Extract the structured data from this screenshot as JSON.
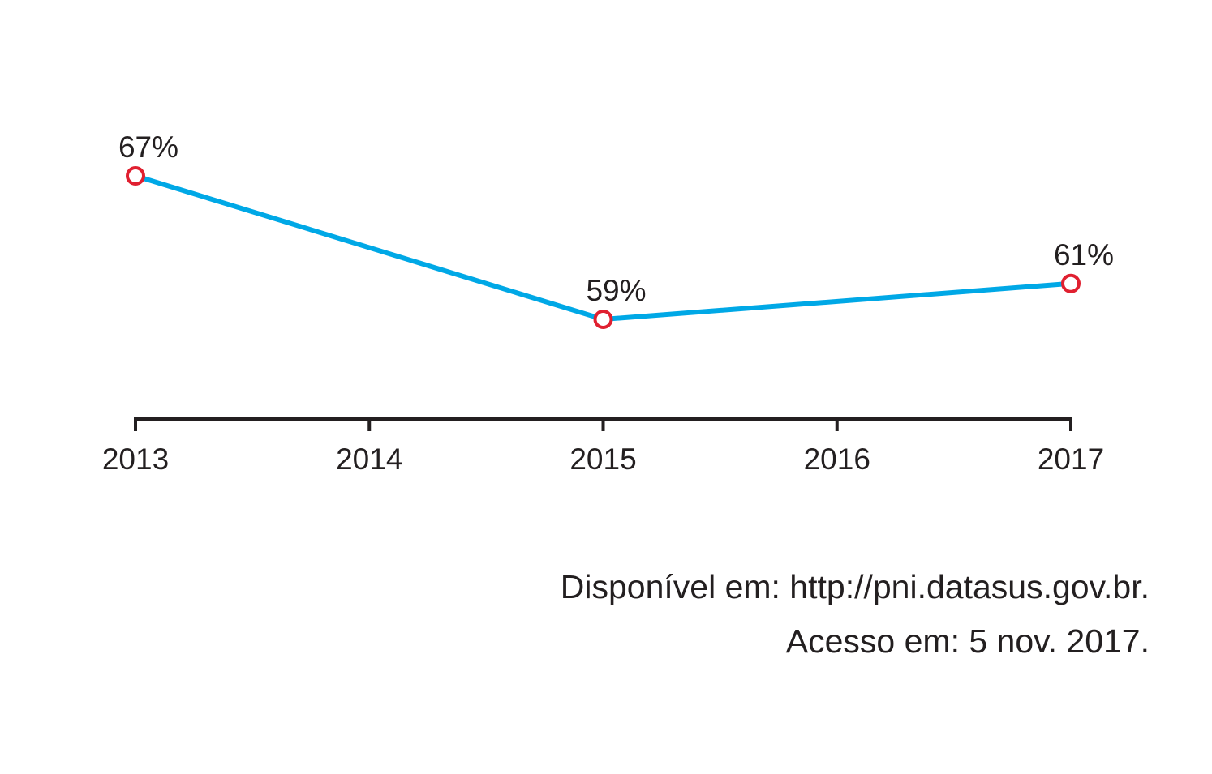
{
  "chart_data": {
    "type": "line",
    "x": [
      2013,
      2015,
      2017
    ],
    "values": [
      67,
      59,
      61
    ],
    "value_labels": [
      "67%",
      "59%",
      "61%"
    ],
    "color": "#00a8e6",
    "marker_color": "#e02030",
    "xlim": [
      2013,
      2017
    ],
    "xticks": [
      2013,
      2014,
      2015,
      2016,
      2017
    ],
    "source": [
      "Disponível em: http://pni.datasus.gov.br.",
      "Acesso em: 5 nov. 2017."
    ]
  }
}
